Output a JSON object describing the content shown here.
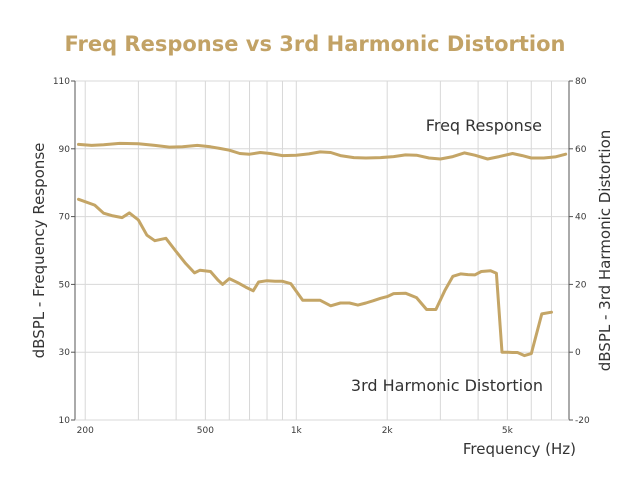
{
  "chart_data": {
    "type": "line",
    "title": "Freq Response vs 3rd Harmonic Distortion",
    "xlabel": "Frequency (Hz)",
    "ylabel": "dBSPL - Frequency Response",
    "y2label": "dBSPL - 3rd Harmonic Distortion",
    "xscale": "log",
    "xlim": [
      185,
      8000
    ],
    "ylim": [
      10,
      110
    ],
    "y2lim": [
      -20,
      80
    ],
    "x_ticks": [
      200,
      500,
      1000,
      2000,
      5000
    ],
    "x_tick_labels": [
      "200",
      "500",
      "1k",
      "2k",
      "5k"
    ],
    "y_ticks": [
      10,
      30,
      50,
      70,
      90,
      110
    ],
    "y2_ticks": [
      -20,
      0,
      20,
      40,
      60,
      80
    ],
    "grid": true,
    "colors": {
      "title": "#C2A265",
      "line": "#C4A566",
      "grid": "#d8d8d8",
      "axis": "#555555"
    },
    "annotations": [
      {
        "text": "Freq Response",
        "series": "Freq Response"
      },
      {
        "text": "3rd Harmonic Distortion",
        "series": "3rd Harmonic Distortion"
      }
    ],
    "series": [
      {
        "name": "Freq Response",
        "axis": "left",
        "x": [
          190,
          210,
          230,
          260,
          300,
          340,
          380,
          420,
          470,
          520,
          560,
          600,
          650,
          700,
          760,
          820,
          900,
          1000,
          1100,
          1200,
          1300,
          1400,
          1550,
          1700,
          1900,
          2100,
          2300,
          2500,
          2750,
          3000,
          3300,
          3600,
          3900,
          4300,
          4700,
          5200,
          5600,
          6000,
          6600,
          7200,
          7800
        ],
        "y": [
          91.3,
          91,
          91.2,
          91.6,
          91.5,
          91,
          90.5,
          90.6,
          91,
          90.6,
          90.1,
          89.6,
          88.6,
          88.4,
          88.9,
          88.6,
          88,
          88.1,
          88.5,
          89.1,
          88.9,
          88,
          87.4,
          87.3,
          87.4,
          87.7,
          88.2,
          88.1,
          87.3,
          87,
          87.7,
          88.8,
          88.1,
          87,
          87.7,
          88.6,
          88,
          87.3,
          87.3,
          87.6,
          88.4
        ]
      },
      {
        "name": "3rd Harmonic Distortion",
        "axis": "right",
        "x": [
          190,
          215,
          230,
          245,
          265,
          280,
          300,
          320,
          340,
          370,
          400,
          430,
          460,
          480,
          520,
          550,
          570,
          600,
          640,
          680,
          720,
          750,
          800,
          850,
          900,
          960,
          1050,
          1100,
          1200,
          1300,
          1400,
          1500,
          1600,
          1700,
          1800,
          1900,
          2000,
          2100,
          2300,
          2500,
          2700,
          2900,
          3100,
          3300,
          3500,
          3700,
          3900,
          4100,
          4400,
          4600,
          4800,
          5000,
          5200,
          5400,
          5700,
          6000,
          6500,
          7000
        ],
        "y": [
          45.1,
          43.4,
          41,
          40.3,
          39.7,
          41.1,
          39,
          34.5,
          32.9,
          33.6,
          29.7,
          26.2,
          23.4,
          24.2,
          23.8,
          21.3,
          20,
          21.7,
          20.5,
          19.2,
          18.1,
          20.7,
          21.1,
          20.9,
          20.9,
          20.2,
          15.3,
          15.3,
          15.3,
          13.7,
          14.5,
          14.5,
          13.9,
          14.5,
          15.2,
          15.9,
          16.4,
          17.3,
          17.4,
          16.1,
          12.6,
          12.6,
          18.1,
          22.4,
          23.1,
          22.9,
          22.8,
          23.8,
          24,
          23.3,
          0,
          0,
          -0.1,
          -0.1,
          -1,
          -0.4,
          11.3,
          11.8
        ]
      }
    ]
  }
}
